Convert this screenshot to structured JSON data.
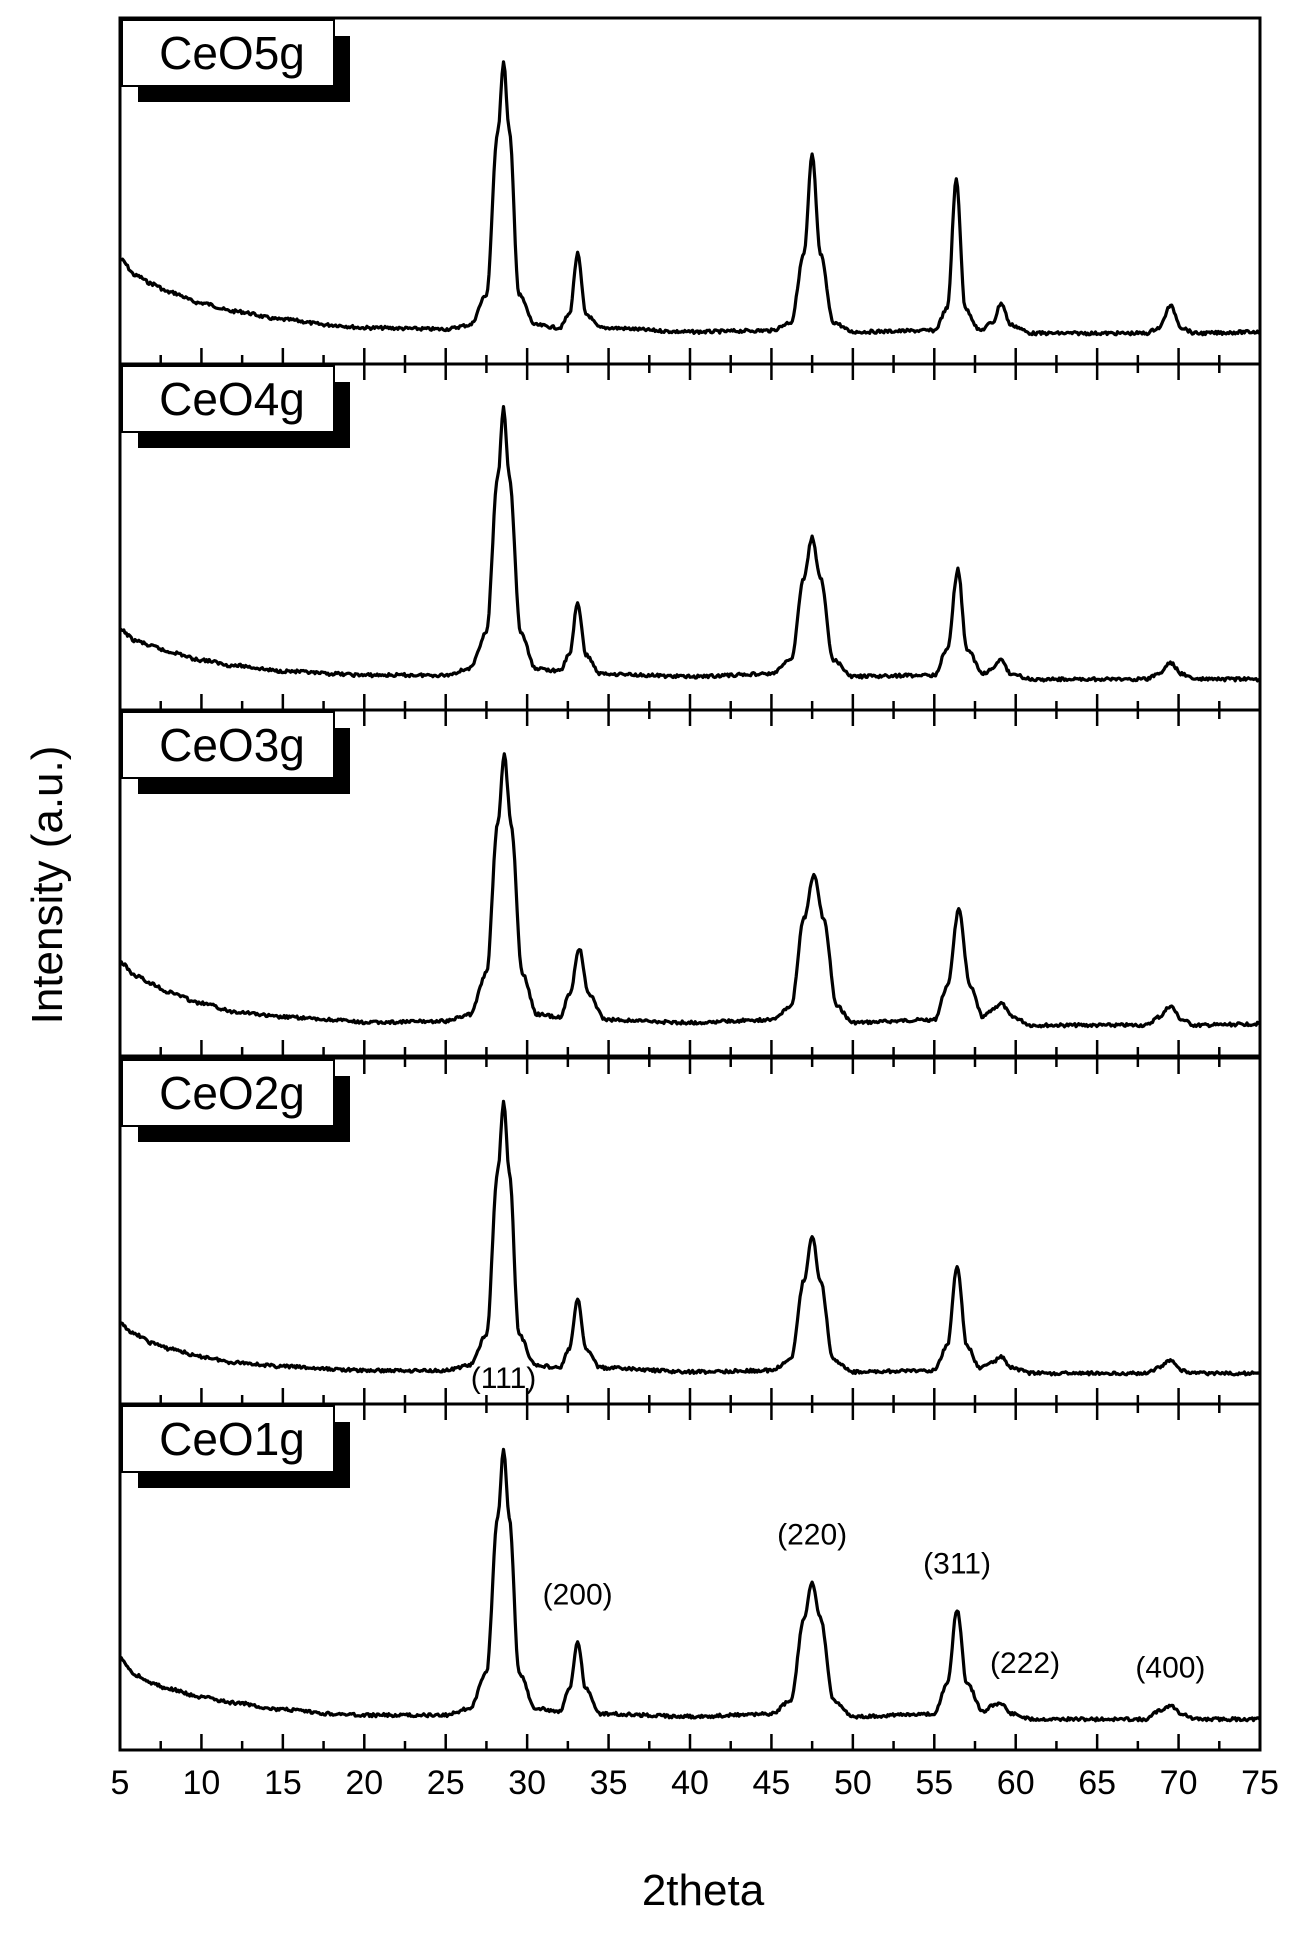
{
  "chart_data": {
    "type": "line",
    "title": "",
    "xlabel": "2theta",
    "ylabel": "Intensity (a.u.)",
    "xlim": [
      5,
      75
    ],
    "x_ticks": [
      5,
      10,
      15,
      20,
      25,
      30,
      35,
      40,
      45,
      50,
      55,
      60,
      65,
      70,
      75
    ],
    "x_minor_step": 2.5,
    "y_scale": "arbitrary, stacked panels, no y tick labels",
    "grid": false,
    "line_color": "#000000",
    "panels": [
      {
        "name": "CeO5g",
        "points": [
          [
            5,
            0.28
          ],
          [
            6,
            0.22
          ],
          [
            7,
            0.19
          ],
          [
            8,
            0.16
          ],
          [
            10,
            0.12
          ],
          [
            12,
            0.09
          ],
          [
            15,
            0.06
          ],
          [
            18,
            0.04
          ],
          [
            20,
            0.03
          ],
          [
            25,
            0.025
          ],
          [
            26.5,
            0.04
          ],
          [
            27.5,
            0.15
          ],
          [
            28.2,
            0.75
          ],
          [
            28.55,
            1.0
          ],
          [
            28.9,
            0.75
          ],
          [
            29.5,
            0.15
          ],
          [
            30.5,
            0.04
          ],
          [
            32,
            0.03
          ],
          [
            32.6,
            0.08
          ],
          [
            33.1,
            0.3
          ],
          [
            33.6,
            0.08
          ],
          [
            34.5,
            0.03
          ],
          [
            40,
            0.015
          ],
          [
            45,
            0.02
          ],
          [
            46.2,
            0.05
          ],
          [
            47.0,
            0.3
          ],
          [
            47.5,
            0.66
          ],
          [
            48.0,
            0.3
          ],
          [
            48.8,
            0.05
          ],
          [
            50,
            0.015
          ],
          [
            55,
            0.02
          ],
          [
            55.8,
            0.1
          ],
          [
            56.35,
            0.57
          ],
          [
            56.9,
            0.1
          ],
          [
            57.8,
            0.02
          ],
          [
            58.6,
            0.05
          ],
          [
            59.1,
            0.12
          ],
          [
            59.7,
            0.04
          ],
          [
            61,
            0.01
          ],
          [
            68,
            0.01
          ],
          [
            68.8,
            0.03
          ],
          [
            69.5,
            0.11
          ],
          [
            70.2,
            0.03
          ],
          [
            71,
            0.01
          ],
          [
            75,
            0.015
          ]
        ]
      },
      {
        "name": "CeO4g",
        "points": [
          [
            5,
            0.19
          ],
          [
            6,
            0.15
          ],
          [
            7,
            0.13
          ],
          [
            8,
            0.11
          ],
          [
            10,
            0.08
          ],
          [
            12,
            0.06
          ],
          [
            15,
            0.04
          ],
          [
            18,
            0.03
          ],
          [
            20,
            0.025
          ],
          [
            25,
            0.025
          ],
          [
            26.5,
            0.05
          ],
          [
            27.5,
            0.18
          ],
          [
            28.2,
            0.75
          ],
          [
            28.55,
            1.0
          ],
          [
            28.9,
            0.75
          ],
          [
            29.6,
            0.18
          ],
          [
            30.5,
            0.05
          ],
          [
            32,
            0.04
          ],
          [
            32.6,
            0.1
          ],
          [
            33.1,
            0.29
          ],
          [
            33.6,
            0.1
          ],
          [
            34.5,
            0.03
          ],
          [
            40,
            0.02
          ],
          [
            45,
            0.03
          ],
          [
            46.2,
            0.08
          ],
          [
            47.0,
            0.38
          ],
          [
            47.5,
            0.53
          ],
          [
            48.0,
            0.38
          ],
          [
            48.8,
            0.08
          ],
          [
            50,
            0.02
          ],
          [
            55,
            0.025
          ],
          [
            55.8,
            0.12
          ],
          [
            56.45,
            0.41
          ],
          [
            57.0,
            0.12
          ],
          [
            58,
            0.03
          ],
          [
            58.6,
            0.05
          ],
          [
            59.1,
            0.08
          ],
          [
            59.7,
            0.03
          ],
          [
            61,
            0.01
          ],
          [
            68,
            0.01
          ],
          [
            68.8,
            0.03
          ],
          [
            69.5,
            0.07
          ],
          [
            70.2,
            0.03
          ],
          [
            71,
            0.01
          ],
          [
            75,
            0.01
          ]
        ]
      },
      {
        "name": "CeO3g",
        "points": [
          [
            5,
            0.24
          ],
          [
            6,
            0.19
          ],
          [
            7,
            0.16
          ],
          [
            8,
            0.13
          ],
          [
            10,
            0.09
          ],
          [
            12,
            0.06
          ],
          [
            15,
            0.04
          ],
          [
            18,
            0.03
          ],
          [
            20,
            0.02
          ],
          [
            25,
            0.025
          ],
          [
            26.5,
            0.05
          ],
          [
            27.5,
            0.2
          ],
          [
            28.2,
            0.75
          ],
          [
            28.6,
            1.0
          ],
          [
            29.0,
            0.75
          ],
          [
            29.7,
            0.2
          ],
          [
            30.6,
            0.05
          ],
          [
            32,
            0.04
          ],
          [
            32.6,
            0.12
          ],
          [
            33.2,
            0.29
          ],
          [
            33.8,
            0.12
          ],
          [
            34.8,
            0.03
          ],
          [
            40,
            0.02
          ],
          [
            45,
            0.03
          ],
          [
            46.2,
            0.08
          ],
          [
            47.0,
            0.4
          ],
          [
            47.6,
            0.56
          ],
          [
            48.2,
            0.4
          ],
          [
            49,
            0.08
          ],
          [
            50,
            0.02
          ],
          [
            55,
            0.03
          ],
          [
            55.8,
            0.15
          ],
          [
            56.5,
            0.43
          ],
          [
            57.2,
            0.15
          ],
          [
            58,
            0.04
          ],
          [
            58.6,
            0.07
          ],
          [
            59.1,
            0.09
          ],
          [
            59.8,
            0.04
          ],
          [
            61,
            0.01
          ],
          [
            68,
            0.01
          ],
          [
            68.8,
            0.04
          ],
          [
            69.5,
            0.08
          ],
          [
            70.2,
            0.03
          ],
          [
            71,
            0.01
          ],
          [
            75,
            0.015
          ]
        ]
      },
      {
        "name": "CeO2g",
        "points": [
          [
            5,
            0.19
          ],
          [
            6,
            0.15
          ],
          [
            7,
            0.12
          ],
          [
            8,
            0.1
          ],
          [
            10,
            0.07
          ],
          [
            12,
            0.05
          ],
          [
            15,
            0.035
          ],
          [
            18,
            0.025
          ],
          [
            20,
            0.02
          ],
          [
            25,
            0.02
          ],
          [
            26.5,
            0.04
          ],
          [
            27.5,
            0.15
          ],
          [
            28.2,
            0.75
          ],
          [
            28.55,
            1.0
          ],
          [
            28.9,
            0.75
          ],
          [
            29.5,
            0.15
          ],
          [
            30.5,
            0.04
          ],
          [
            32,
            0.03
          ],
          [
            32.6,
            0.1
          ],
          [
            33.1,
            0.28
          ],
          [
            33.6,
            0.1
          ],
          [
            34.5,
            0.03
          ],
          [
            40,
            0.015
          ],
          [
            45,
            0.02
          ],
          [
            46.2,
            0.06
          ],
          [
            47.0,
            0.35
          ],
          [
            47.5,
            0.51
          ],
          [
            48.0,
            0.35
          ],
          [
            48.8,
            0.06
          ],
          [
            50,
            0.015
          ],
          [
            55,
            0.02
          ],
          [
            55.8,
            0.11
          ],
          [
            56.4,
            0.4
          ],
          [
            57.0,
            0.11
          ],
          [
            57.8,
            0.03
          ],
          [
            58.6,
            0.05
          ],
          [
            59.1,
            0.07
          ],
          [
            59.7,
            0.03
          ],
          [
            61,
            0.01
          ],
          [
            68,
            0.01
          ],
          [
            68.8,
            0.03
          ],
          [
            69.5,
            0.06
          ],
          [
            70.2,
            0.02
          ],
          [
            71,
            0.01
          ],
          [
            75,
            0.01
          ]
        ]
      },
      {
        "name": "CeO1g",
        "points": [
          [
            5,
            0.23
          ],
          [
            6,
            0.17
          ],
          [
            7,
            0.14
          ],
          [
            8,
            0.12
          ],
          [
            10,
            0.09
          ],
          [
            12,
            0.07
          ],
          [
            15,
            0.045
          ],
          [
            18,
            0.03
          ],
          [
            20,
            0.025
          ],
          [
            25,
            0.025
          ],
          [
            26.5,
            0.05
          ],
          [
            27.5,
            0.18
          ],
          [
            28.2,
            0.75
          ],
          [
            28.55,
            1.0
          ],
          [
            28.9,
            0.75
          ],
          [
            29.5,
            0.18
          ],
          [
            30.5,
            0.05
          ],
          [
            32,
            0.04
          ],
          [
            32.6,
            0.12
          ],
          [
            33.1,
            0.29
          ],
          [
            33.6,
            0.12
          ],
          [
            34.5,
            0.03
          ],
          [
            40,
            0.02
          ],
          [
            45,
            0.03
          ],
          [
            46.2,
            0.08
          ],
          [
            47.0,
            0.38
          ],
          [
            47.5,
            0.51
          ],
          [
            48.0,
            0.38
          ],
          [
            48.8,
            0.08
          ],
          [
            50,
            0.02
          ],
          [
            55,
            0.03
          ],
          [
            55.8,
            0.14
          ],
          [
            56.4,
            0.41
          ],
          [
            57.0,
            0.14
          ],
          [
            58,
            0.04
          ],
          [
            58.6,
            0.06
          ],
          [
            59.1,
            0.07
          ],
          [
            59.7,
            0.03
          ],
          [
            61,
            0.01
          ],
          [
            68,
            0.01
          ],
          [
            68.8,
            0.04
          ],
          [
            69.5,
            0.06
          ],
          [
            70.2,
            0.03
          ],
          [
            71,
            0.01
          ],
          [
            75,
            0.01
          ]
        ]
      }
    ],
    "peak_annotations": [
      {
        "label": "(111)",
        "x": 28.55
      },
      {
        "label": "(200)",
        "x": 33.1
      },
      {
        "label": "(220)",
        "x": 47.5
      },
      {
        "label": "(311)",
        "x": 56.4
      },
      {
        "label": "(222)",
        "x": 59.1
      },
      {
        "label": "(400)",
        "x": 69.5
      }
    ]
  }
}
